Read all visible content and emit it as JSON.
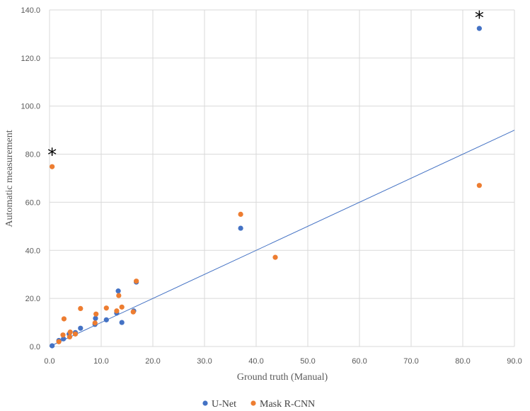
{
  "chart_data": {
    "type": "scatter",
    "title": "",
    "xlabel": "Ground truth (Manual)",
    "ylabel": "Automatic measurement",
    "xlim": [
      0,
      90
    ],
    "ylim": [
      0,
      140
    ],
    "xticks": [
      0,
      10,
      20,
      30,
      40,
      50,
      60,
      70,
      80,
      90
    ],
    "yticks": [
      0,
      20,
      40,
      60,
      80,
      100,
      120,
      140
    ],
    "xtick_labels": [
      "0.0",
      "10.0",
      "20.0",
      "30.0",
      "40.0",
      "50.0",
      "60.0",
      "70.0",
      "80.0",
      "90.0"
    ],
    "ytick_labels": [
      "0.0",
      "20.0",
      "40.0",
      "60.0",
      "80.0",
      "100.0",
      "120.0",
      "140.0"
    ],
    "grid": true,
    "legend_position": "bottom",
    "series": [
      {
        "name": "U-Net",
        "color": "#4472C4",
        "points": [
          [
            0.5,
            0.3
          ],
          [
            1.8,
            2.5
          ],
          [
            2.7,
            3.2
          ],
          [
            3.8,
            5.2
          ],
          [
            5.0,
            5.8
          ],
          [
            6.0,
            7.6
          ],
          [
            8.8,
            9.2
          ],
          [
            8.9,
            11.7
          ],
          [
            11.0,
            11.1
          ],
          [
            13.0,
            13.9
          ],
          [
            13.3,
            23.1
          ],
          [
            14.0,
            10.0
          ],
          [
            16.3,
            14.8
          ],
          [
            16.8,
            26.8
          ],
          [
            37.0,
            49.2
          ],
          [
            83.2,
            132.3
          ]
        ]
      },
      {
        "name": "Mask R-CNN",
        "color": "#ED7D31",
        "points": [
          [
            0.5,
            74.8
          ],
          [
            1.8,
            2.0
          ],
          [
            2.6,
            4.8
          ],
          [
            2.8,
            11.5
          ],
          [
            3.9,
            4.0
          ],
          [
            4.0,
            6.0
          ],
          [
            5.0,
            5.2
          ],
          [
            6.0,
            15.8
          ],
          [
            8.8,
            9.8
          ],
          [
            9.0,
            13.5
          ],
          [
            11.0,
            16.0
          ],
          [
            13.0,
            14.8
          ],
          [
            13.4,
            21.2
          ],
          [
            14.0,
            16.4
          ],
          [
            16.2,
            14.4
          ],
          [
            16.8,
            27.2
          ],
          [
            37.0,
            55.0
          ],
          [
            43.7,
            37.1
          ],
          [
            83.2,
            67.0
          ]
        ]
      }
    ],
    "trendline": {
      "color": "#4472C4",
      "from": [
        0,
        0
      ],
      "to": [
        90,
        90
      ]
    },
    "annotations": [
      {
        "text": "*",
        "x": 0.5,
        "y": 80
      },
      {
        "text": "*",
        "x": 83.2,
        "y": 137
      }
    ]
  }
}
